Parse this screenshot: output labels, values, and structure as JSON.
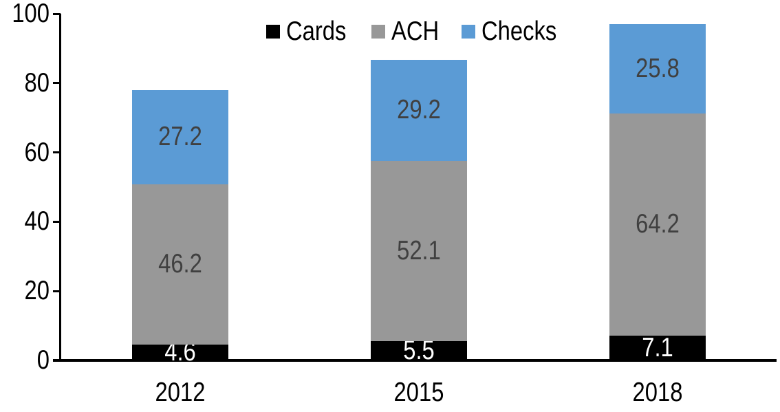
{
  "chart_data": {
    "type": "bar",
    "stacked": true,
    "categories": [
      "2012",
      "2015",
      "2018"
    ],
    "series": [
      {
        "name": "Cards",
        "color": "#000000",
        "label_color": "#FFFFFF",
        "values": [
          4.6,
          5.5,
          7.1
        ]
      },
      {
        "name": "ACH",
        "color": "#989898",
        "label_color": "#404040",
        "values": [
          46.2,
          52.1,
          64.2
        ]
      },
      {
        "name": "Checks",
        "color": "#5B9BD5",
        "label_color": "#404040",
        "values": [
          27.2,
          29.2,
          25.8
        ]
      }
    ],
    "totals": [
      78.0,
      86.8,
      97.1
    ],
    "y_axis": {
      "min": 0,
      "max": 100,
      "step": 20,
      "tick_labels": [
        "0",
        "20",
        "40",
        "60",
        "80",
        "100"
      ]
    },
    "x_axis": {
      "tick_labels": [
        "2012",
        "2015",
        "2018"
      ]
    },
    "legend": {
      "position": "top-center",
      "entries": [
        "Cards",
        "ACH",
        "Checks"
      ]
    },
    "grid": false,
    "data_labels": true,
    "axis_color": "#000000",
    "background_color": "#FFFFFF"
  }
}
